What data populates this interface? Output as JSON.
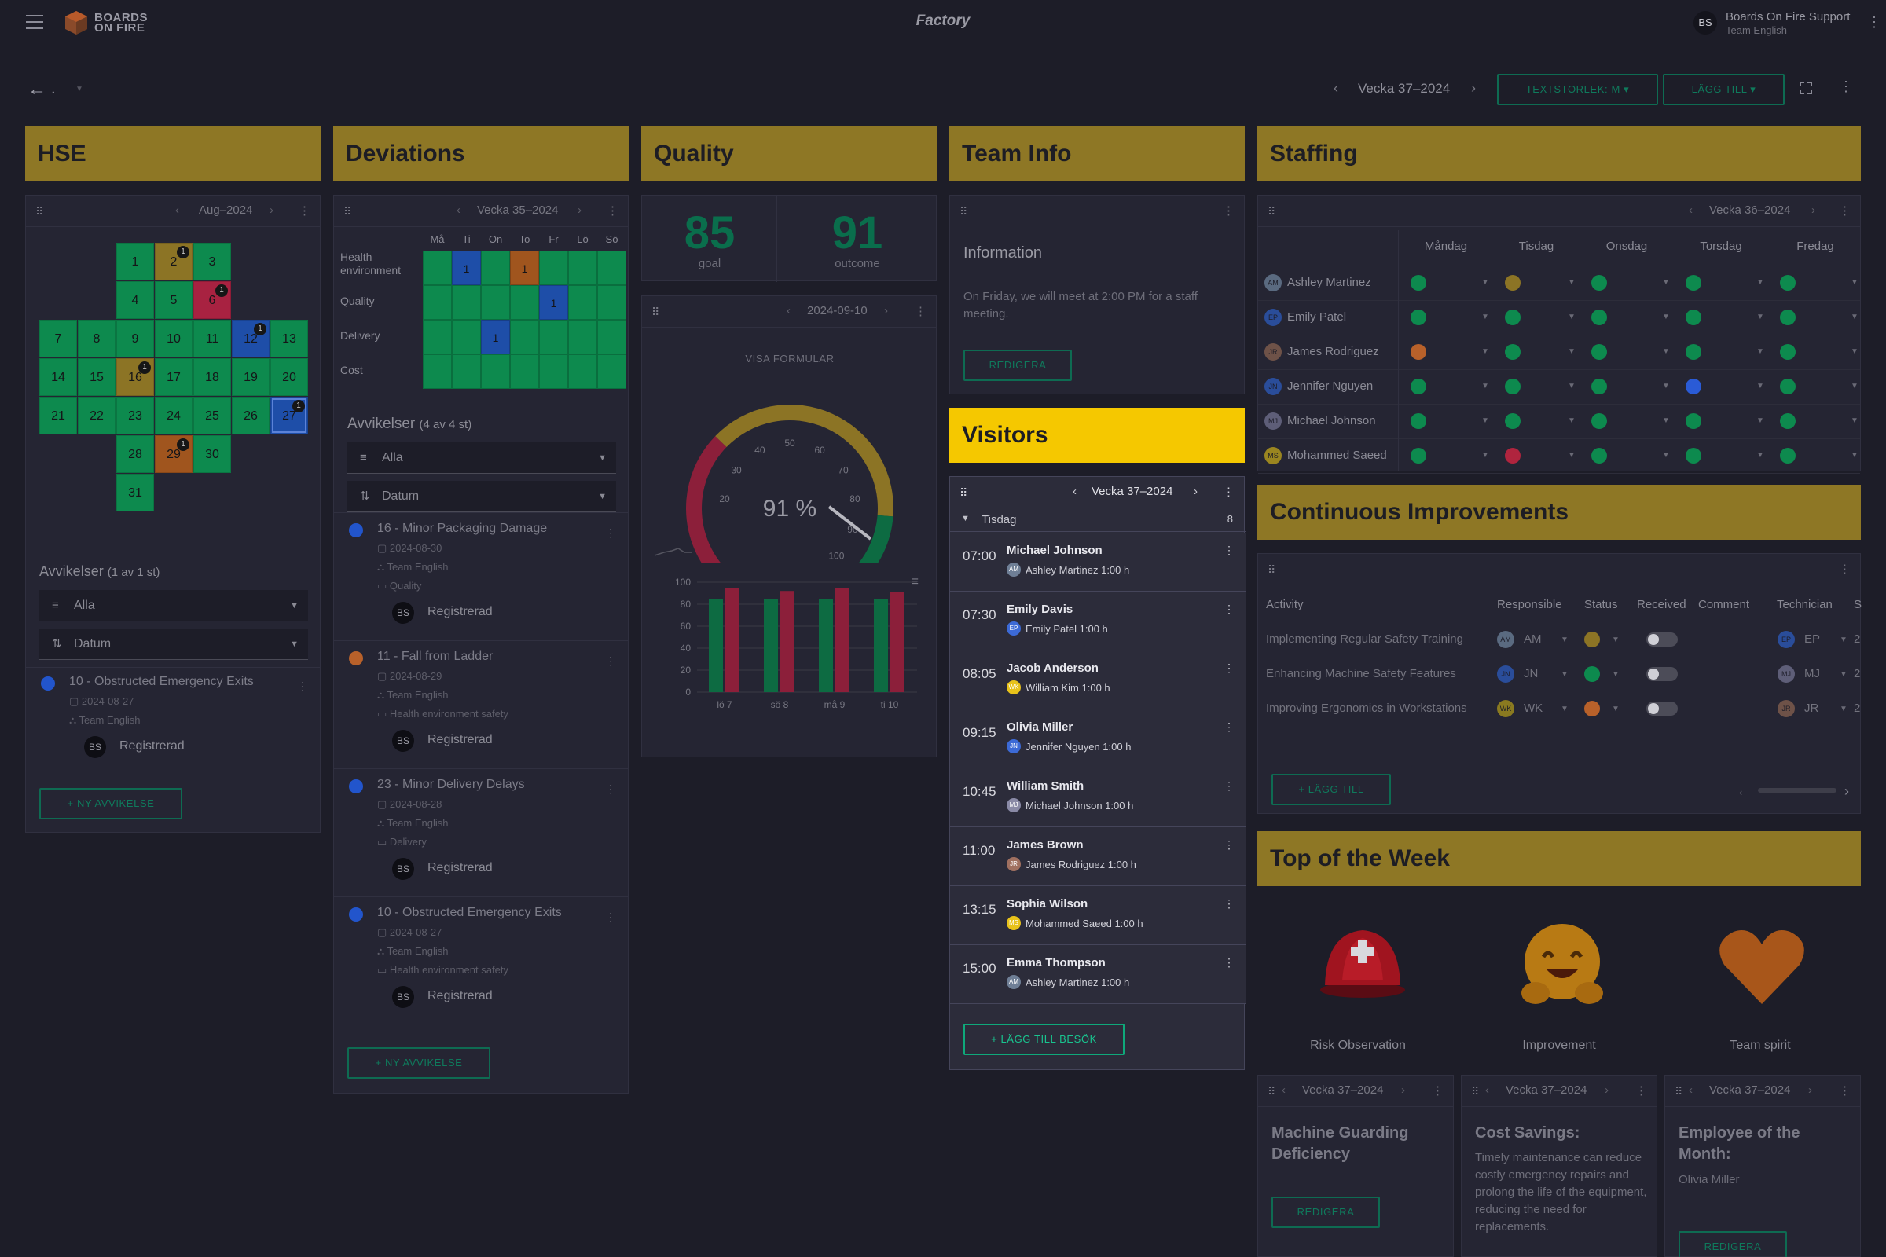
{
  "brand": {
    "logo_line1": "BOARDS",
    "logo_line2": "ON FIRE",
    "app_name": "Factory"
  },
  "user": {
    "initials": "BS",
    "name": "Boards On Fire Support",
    "team": "Team English"
  },
  "toolbar": {
    "back_label": ".",
    "week_label": "Vecka 37–2024",
    "text_size_button": "TEXTSTORLEK: M",
    "add_button": "LÄGG TILL"
  },
  "hse": {
    "title": "HSE",
    "month_label": "Aug–2024",
    "calendar": [
      {
        "day": "1",
        "color": "#0d8a4e"
      },
      {
        "day": "2",
        "color": "#8c7425",
        "badge": "1"
      },
      {
        "day": "3",
        "color": "#0d8a4e"
      },
      {
        "day": "4",
        "color": "#0d8a4e"
      },
      {
        "day": "5",
        "color": "#0d8a4e"
      },
      {
        "day": "6",
        "color": "#a82241",
        "badge": "1"
      },
      {
        "day": "7",
        "color": "#0d8a4e"
      },
      {
        "day": "8",
        "color": "#0d8a4e"
      },
      {
        "day": "9",
        "color": "#0d8a4e"
      },
      {
        "day": "10",
        "color": "#0d8a4e"
      },
      {
        "day": "11",
        "color": "#0d8a4e"
      },
      {
        "day": "12",
        "color": "#1e4ea8",
        "badge": "1"
      },
      {
        "day": "13",
        "color": "#0d8a4e"
      },
      {
        "day": "14",
        "color": "#0d8a4e"
      },
      {
        "day": "15",
        "color": "#0d8a4e"
      },
      {
        "day": "16",
        "color": "#8c7425",
        "badge": "1"
      },
      {
        "day": "17",
        "color": "#0d8a4e"
      },
      {
        "day": "18",
        "color": "#0d8a4e"
      },
      {
        "day": "19",
        "color": "#0d8a4e"
      },
      {
        "day": "20",
        "color": "#0d8a4e"
      },
      {
        "day": "21",
        "color": "#0d8a4e"
      },
      {
        "day": "22",
        "color": "#0d8a4e"
      },
      {
        "day": "23",
        "color": "#0d8a4e"
      },
      {
        "day": "24",
        "color": "#0d8a4e"
      },
      {
        "day": "25",
        "color": "#0d8a4e"
      },
      {
        "day": "26",
        "color": "#0d8a4e"
      },
      {
        "day": "27",
        "color": "#1e4ea8",
        "badge": "1"
      },
      {
        "day": "28",
        "color": "#0d8a4e"
      },
      {
        "day": "29",
        "color": "#a0551e",
        "badge": "1"
      },
      {
        "day": "30",
        "color": "#0d8a4e"
      },
      {
        "day": "31",
        "color": "#0d8a4e"
      }
    ],
    "deviations_heading": "Avvikelser",
    "deviations_count": "(1 av 1 st)",
    "filter_all": "Alla",
    "sort_date": "Datum",
    "items": [
      {
        "title": "10 - Obstructed Emergency Exits",
        "date": "2024-08-27",
        "team": "Team English",
        "avatar": "BS",
        "status": "Registrerad",
        "dot_color": "#2255cc"
      }
    ],
    "new_button": "+ NY AVVIKELSE"
  },
  "deviations": {
    "title": "Deviations",
    "week_label": "Vecka 35–2024",
    "days": [
      "Må",
      "Ti",
      "On",
      "To",
      "Fr",
      "Lö",
      "Sö"
    ],
    "rows": [
      {
        "label": "Health environment",
        "cells": [
          "#0d8a4e",
          "#1e4ea8",
          "#0d8a4e",
          "#a0551e",
          "#0d8a4e",
          "#0d8a4e",
          "#0d8a4e"
        ],
        "values": [
          "",
          "1",
          "",
          "1",
          "",
          "",
          ""
        ]
      },
      {
        "label": "Quality",
        "cells": [
          "#0d8a4e",
          "#0d8a4e",
          "#0d8a4e",
          "#0d8a4e",
          "#1e4ea8",
          "#0d8a4e",
          "#0d8a4e"
        ],
        "values": [
          "",
          "",
          "",
          "",
          "1",
          "",
          ""
        ]
      },
      {
        "label": "Delivery",
        "cells": [
          "#0d8a4e",
          "#0d8a4e",
          "#1e4ea8",
          "#0d8a4e",
          "#0d8a4e",
          "#0d8a4e",
          "#0d8a4e"
        ],
        "values": [
          "",
          "",
          "1",
          "",
          "",
          "",
          ""
        ]
      },
      {
        "label": "Cost",
        "cells": [
          "#0d8a4e",
          "#0d8a4e",
          "#0d8a4e",
          "#0d8a4e",
          "#0d8a4e",
          "#0d8a4e",
          "#0d8a4e"
        ],
        "values": [
          "",
          "",
          "",
          "",
          "",
          "",
          ""
        ]
      }
    ],
    "deviations_heading": "Avvikelser",
    "deviations_count": "(4 av 4 st)",
    "filter_all": "Alla",
    "sort_date": "Datum",
    "items": [
      {
        "title": "16 - Minor Packaging Damage",
        "date": "2024-08-30",
        "team": "Team English",
        "category": "Quality",
        "avatar": "BS",
        "status": "Registrerad",
        "dot_color": "#2255cc"
      },
      {
        "title": "11 - Fall from Ladder",
        "date": "2024-08-29",
        "team": "Team English",
        "category": "Health environment safety",
        "avatar": "BS",
        "status": "Registrerad",
        "dot_color": "#b8612a"
      },
      {
        "title": "23 - Minor Delivery Delays",
        "date": "2024-08-28",
        "team": "Team English",
        "category": "Delivery",
        "avatar": "BS",
        "status": "Registrerad",
        "dot_color": "#2255cc"
      },
      {
        "title": "10 - Obstructed Emergency Exits",
        "date": "2024-08-27",
        "team": "Team English",
        "category": "Health environment safety",
        "avatar": "BS",
        "status": "Registrerad",
        "dot_color": "#2255cc"
      }
    ],
    "new_button": "+ NY AVVIKELSE"
  },
  "quality": {
    "title": "Quality",
    "goal_value": "85",
    "goal_label": "goal",
    "outcome_value": "91",
    "outcome_label": "outcome",
    "date_label": "2024-09-10",
    "form_link": "VISA FORMULÄR",
    "gauge": {
      "value": 91,
      "min": 0,
      "max": 100,
      "label": "91 %",
      "ticks": [
        "20",
        "30",
        "40",
        "50",
        "60",
        "70",
        "80",
        "90",
        "100"
      ]
    },
    "chart_data": {
      "type": "bar",
      "categories": [
        "lö 7",
        "sö 8",
        "må 9",
        "ti 10"
      ],
      "series": [
        {
          "values": [
            85,
            85,
            85,
            85
          ],
          "color": "#0d6b42"
        },
        {
          "values": [
            95,
            92,
            95,
            91
          ],
          "color": "#8c1f3a"
        }
      ],
      "ylim": [
        0,
        100
      ],
      "yticks": [
        "0",
        "20",
        "40",
        "60",
        "80",
        "100"
      ],
      "xlabel": "",
      "ylabel": ""
    }
  },
  "team_info": {
    "title": "Team Info",
    "heading": "Information",
    "body": "On Friday, we will meet at 2:00 PM for a staff meeting.",
    "edit_button": "REDIGERA"
  },
  "visitors": {
    "title": "Visitors",
    "week_label": "Vecka 37–2024",
    "day_label": "Tisdag",
    "day_count": "8",
    "rows": [
      {
        "time": "07:00",
        "name": "Michael Johnson",
        "host_initials": "AM",
        "host": "Ashley Martinez 1:00 h",
        "host_color": "#6f7f96"
      },
      {
        "time": "07:30",
        "name": "Emily Davis",
        "host_initials": "EP",
        "host": "Emily Patel 1:00 h",
        "host_color": "#3c6ad6"
      },
      {
        "time": "08:05",
        "name": "Jacob Anderson",
        "host_initials": "WK",
        "host": "William Kim 1:00 h",
        "host_color": "#e8c21a"
      },
      {
        "time": "09:15",
        "name": "Olivia Miller",
        "host_initials": "JN",
        "host": "Jennifer Nguyen 1:00 h",
        "host_color": "#3c6ad6"
      },
      {
        "time": "10:45",
        "name": "William Smith",
        "host_initials": "MJ",
        "host": "Michael Johnson 1:00 h",
        "host_color": "#8a8aa6"
      },
      {
        "time": "11:00",
        "name": "James Brown",
        "host_initials": "JR",
        "host": "James Rodriguez 1:00 h",
        "host_color": "#a07060"
      },
      {
        "time": "13:15",
        "name": "Sophia Wilson",
        "host_initials": "MS",
        "host": "Mohammed Saeed 1:00 h",
        "host_color": "#e8c21a"
      },
      {
        "time": "15:00",
        "name": "Emma Thompson",
        "host_initials": "AM",
        "host": "Ashley Martinez 1:00 h",
        "host_color": "#6f7f96"
      }
    ],
    "add_button": "+ LÄGG TILL BESÖK"
  },
  "staffing": {
    "title": "Staffing",
    "week_label": "Vecka 36–2024",
    "days": [
      "Måndag",
      "Tisdag",
      "Onsdag",
      "Torsdag",
      "Fredag"
    ],
    "people": [
      {
        "initials": "AM",
        "name": "Ashley Martinez",
        "av_color": "#5a6a80",
        "statuses": [
          "#0d8a4e",
          "#8c7425",
          "#0d8a4e",
          "#0d8a4e",
          "#0d8a4e"
        ]
      },
      {
        "initials": "EP",
        "name": "Emily Patel",
        "av_color": "#2a4d9a",
        "statuses": [
          "#0d8a4e",
          "#0d8a4e",
          "#0d8a4e",
          "#0d8a4e",
          "#0d8a4e"
        ]
      },
      {
        "initials": "JR",
        "name": "James Rodriguez",
        "av_color": "#6e5248",
        "statuses": [
          "#b8612a",
          "#0d8a4e",
          "#0d8a4e",
          "#0d8a4e",
          "#0d8a4e"
        ]
      },
      {
        "initials": "JN",
        "name": "Jennifer Nguyen",
        "av_color": "#2a4d9a",
        "statuses": [
          "#0d8a4e",
          "#0d8a4e",
          "#0d8a4e",
          "#2a5bd6",
          "#0d8a4e"
        ]
      },
      {
        "initials": "MJ",
        "name": "Michael Johnson",
        "av_color": "#5e5e78",
        "statuses": [
          "#0d8a4e",
          "#0d8a4e",
          "#0d8a4e",
          "#0d8a4e",
          "#0d8a4e"
        ]
      },
      {
        "initials": "MS",
        "name": "Mohammed Saeed",
        "av_color": "#9a8520",
        "statuses": [
          "#0d8a4e",
          "#b0243e",
          "#0d8a4e",
          "#0d8a4e",
          "#0d8a4e"
        ]
      }
    ]
  },
  "ci": {
    "title": "Continuous Improvements",
    "columns": [
      "Activity",
      "Responsible",
      "Status",
      "Received",
      "Comment",
      "Technician",
      "S"
    ],
    "rows": [
      {
        "activity": "Implementing Regular Safety Training",
        "resp": "AM",
        "resp_color": "#5a6a80",
        "status_color": "#8c7425",
        "tech": "EP",
        "tech_color": "#2a4d9a",
        "extra": "2"
      },
      {
        "activity": "Enhancing Machine Safety Features",
        "resp": "JN",
        "resp_color": "#2a4d9a",
        "status_color": "#0d8a4e",
        "tech": "MJ",
        "tech_color": "#5e5e78",
        "extra": "2"
      },
      {
        "activity": "Improving Ergonomics in Workstations",
        "resp": "WK",
        "resp_color": "#8a7a20",
        "status_color": "#b8612a",
        "tech": "JR",
        "tech_color": "#6e5248",
        "extra": "2"
      }
    ],
    "add_button": "+ LÄGG TILL"
  },
  "top_week": {
    "title": "Top of the Week",
    "items": [
      {
        "label": "Risk Observation"
      },
      {
        "label": "Improvement"
      },
      {
        "label": "Team spirit"
      }
    ],
    "cards": [
      {
        "week": "Vecka 37–2024",
        "title": "Machine Guarding Deficiency",
        "body": "",
        "button": "REDIGERA"
      },
      {
        "week": "Vecka 37–2024",
        "title": "Cost Savings:",
        "body": "Timely maintenance can reduce costly emergency repairs and prolong the life of the equipment, reducing the need for replacements.",
        "button": ""
      },
      {
        "week": "Vecka 37–2024",
        "title": "Employee of the Month:",
        "body": "Olivia Miller",
        "button": "REDIGERA"
      }
    ]
  },
  "colors": {
    "accent_green": "#0f7a5c",
    "header_gold": "#8e7725",
    "header_yellow": "#f5c800",
    "background": "#1d1d28"
  }
}
